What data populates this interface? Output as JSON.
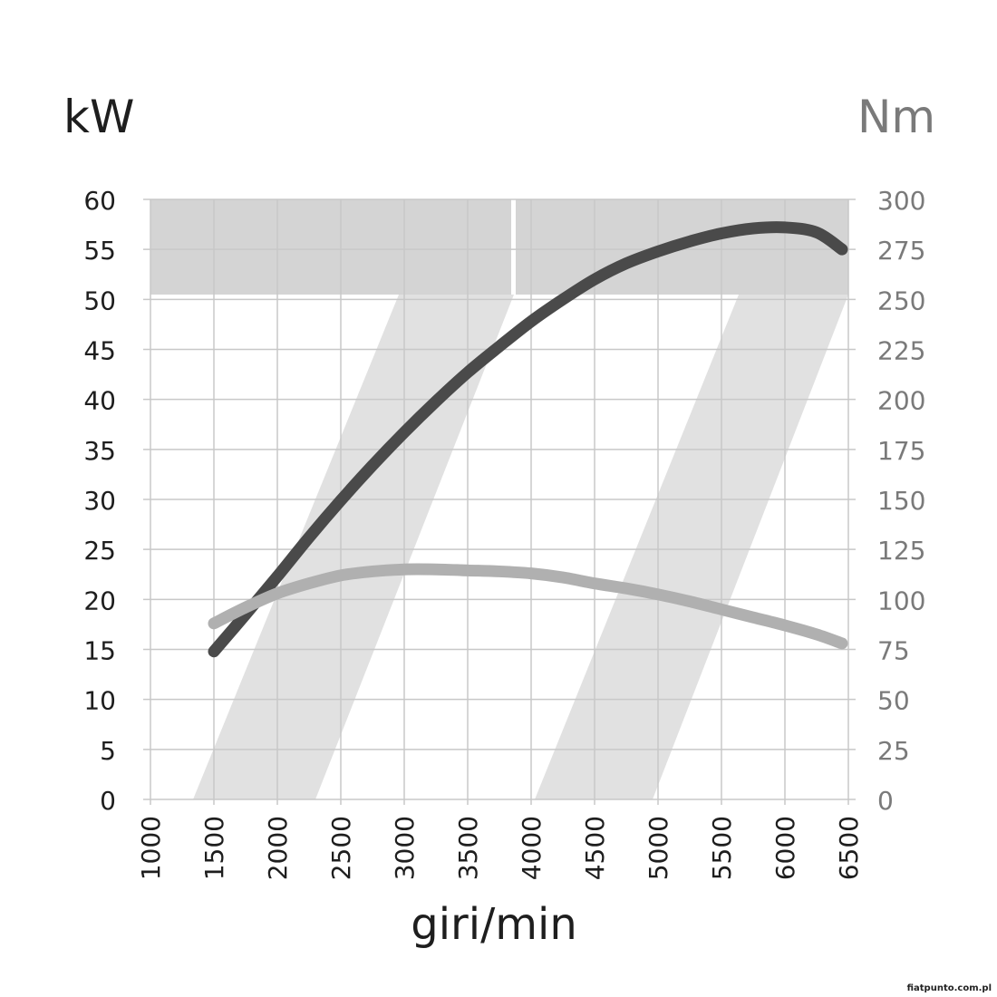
{
  "chart_data": {
    "type": "line",
    "xlabel": "giri/min",
    "y_left_label": "kW",
    "y_right_label": "Nm",
    "x_ticks": [
      1000,
      1500,
      2000,
      2500,
      3000,
      3500,
      4000,
      4500,
      5000,
      5500,
      6000,
      6500
    ],
    "y_left_ticks": [
      0,
      5,
      10,
      15,
      20,
      25,
      30,
      35,
      40,
      45,
      50,
      55,
      60
    ],
    "y_right_ticks": [
      0,
      25,
      50,
      75,
      100,
      125,
      150,
      175,
      200,
      225,
      250,
      275,
      300
    ],
    "xlim": [
      1000,
      6500
    ],
    "ylim_left": [
      0,
      60
    ],
    "ylim_right": [
      0,
      300
    ],
    "grid": true,
    "series": [
      {
        "axis": "left",
        "color": "#4a4a4a",
        "x": [
          1500,
          1750,
          2000,
          2250,
          2500,
          2750,
          3000,
          3250,
          3500,
          3750,
          4000,
          4250,
          4500,
          4750,
          5000,
          5250,
          5500,
          5750,
          6000,
          6250,
          6450
        ],
        "values": [
          14.8,
          18.5,
          22.3,
          26.2,
          29.9,
          33.4,
          36.7,
          39.8,
          42.7,
          45.3,
          47.8,
          50.0,
          52.0,
          53.6,
          54.8,
          55.8,
          56.6,
          57.1,
          57.2,
          56.7,
          55.0
        ]
      },
      {
        "axis": "right",
        "color": "#b0b0b0",
        "x": [
          1500,
          1750,
          2000,
          2250,
          2500,
          2750,
          3000,
          3250,
          3500,
          3750,
          4000,
          4250,
          4500,
          4750,
          5000,
          5250,
          5500,
          5750,
          6000,
          6250,
          6450
        ],
        "values": [
          88,
          96,
          103,
          108,
          112,
          114,
          115,
          115,
          114.5,
          114,
          113,
          111,
          108,
          105.5,
          102.5,
          99,
          95,
          91,
          87,
          82.5,
          78
        ]
      }
    ]
  },
  "credit": "fiatpunto.com.pl"
}
